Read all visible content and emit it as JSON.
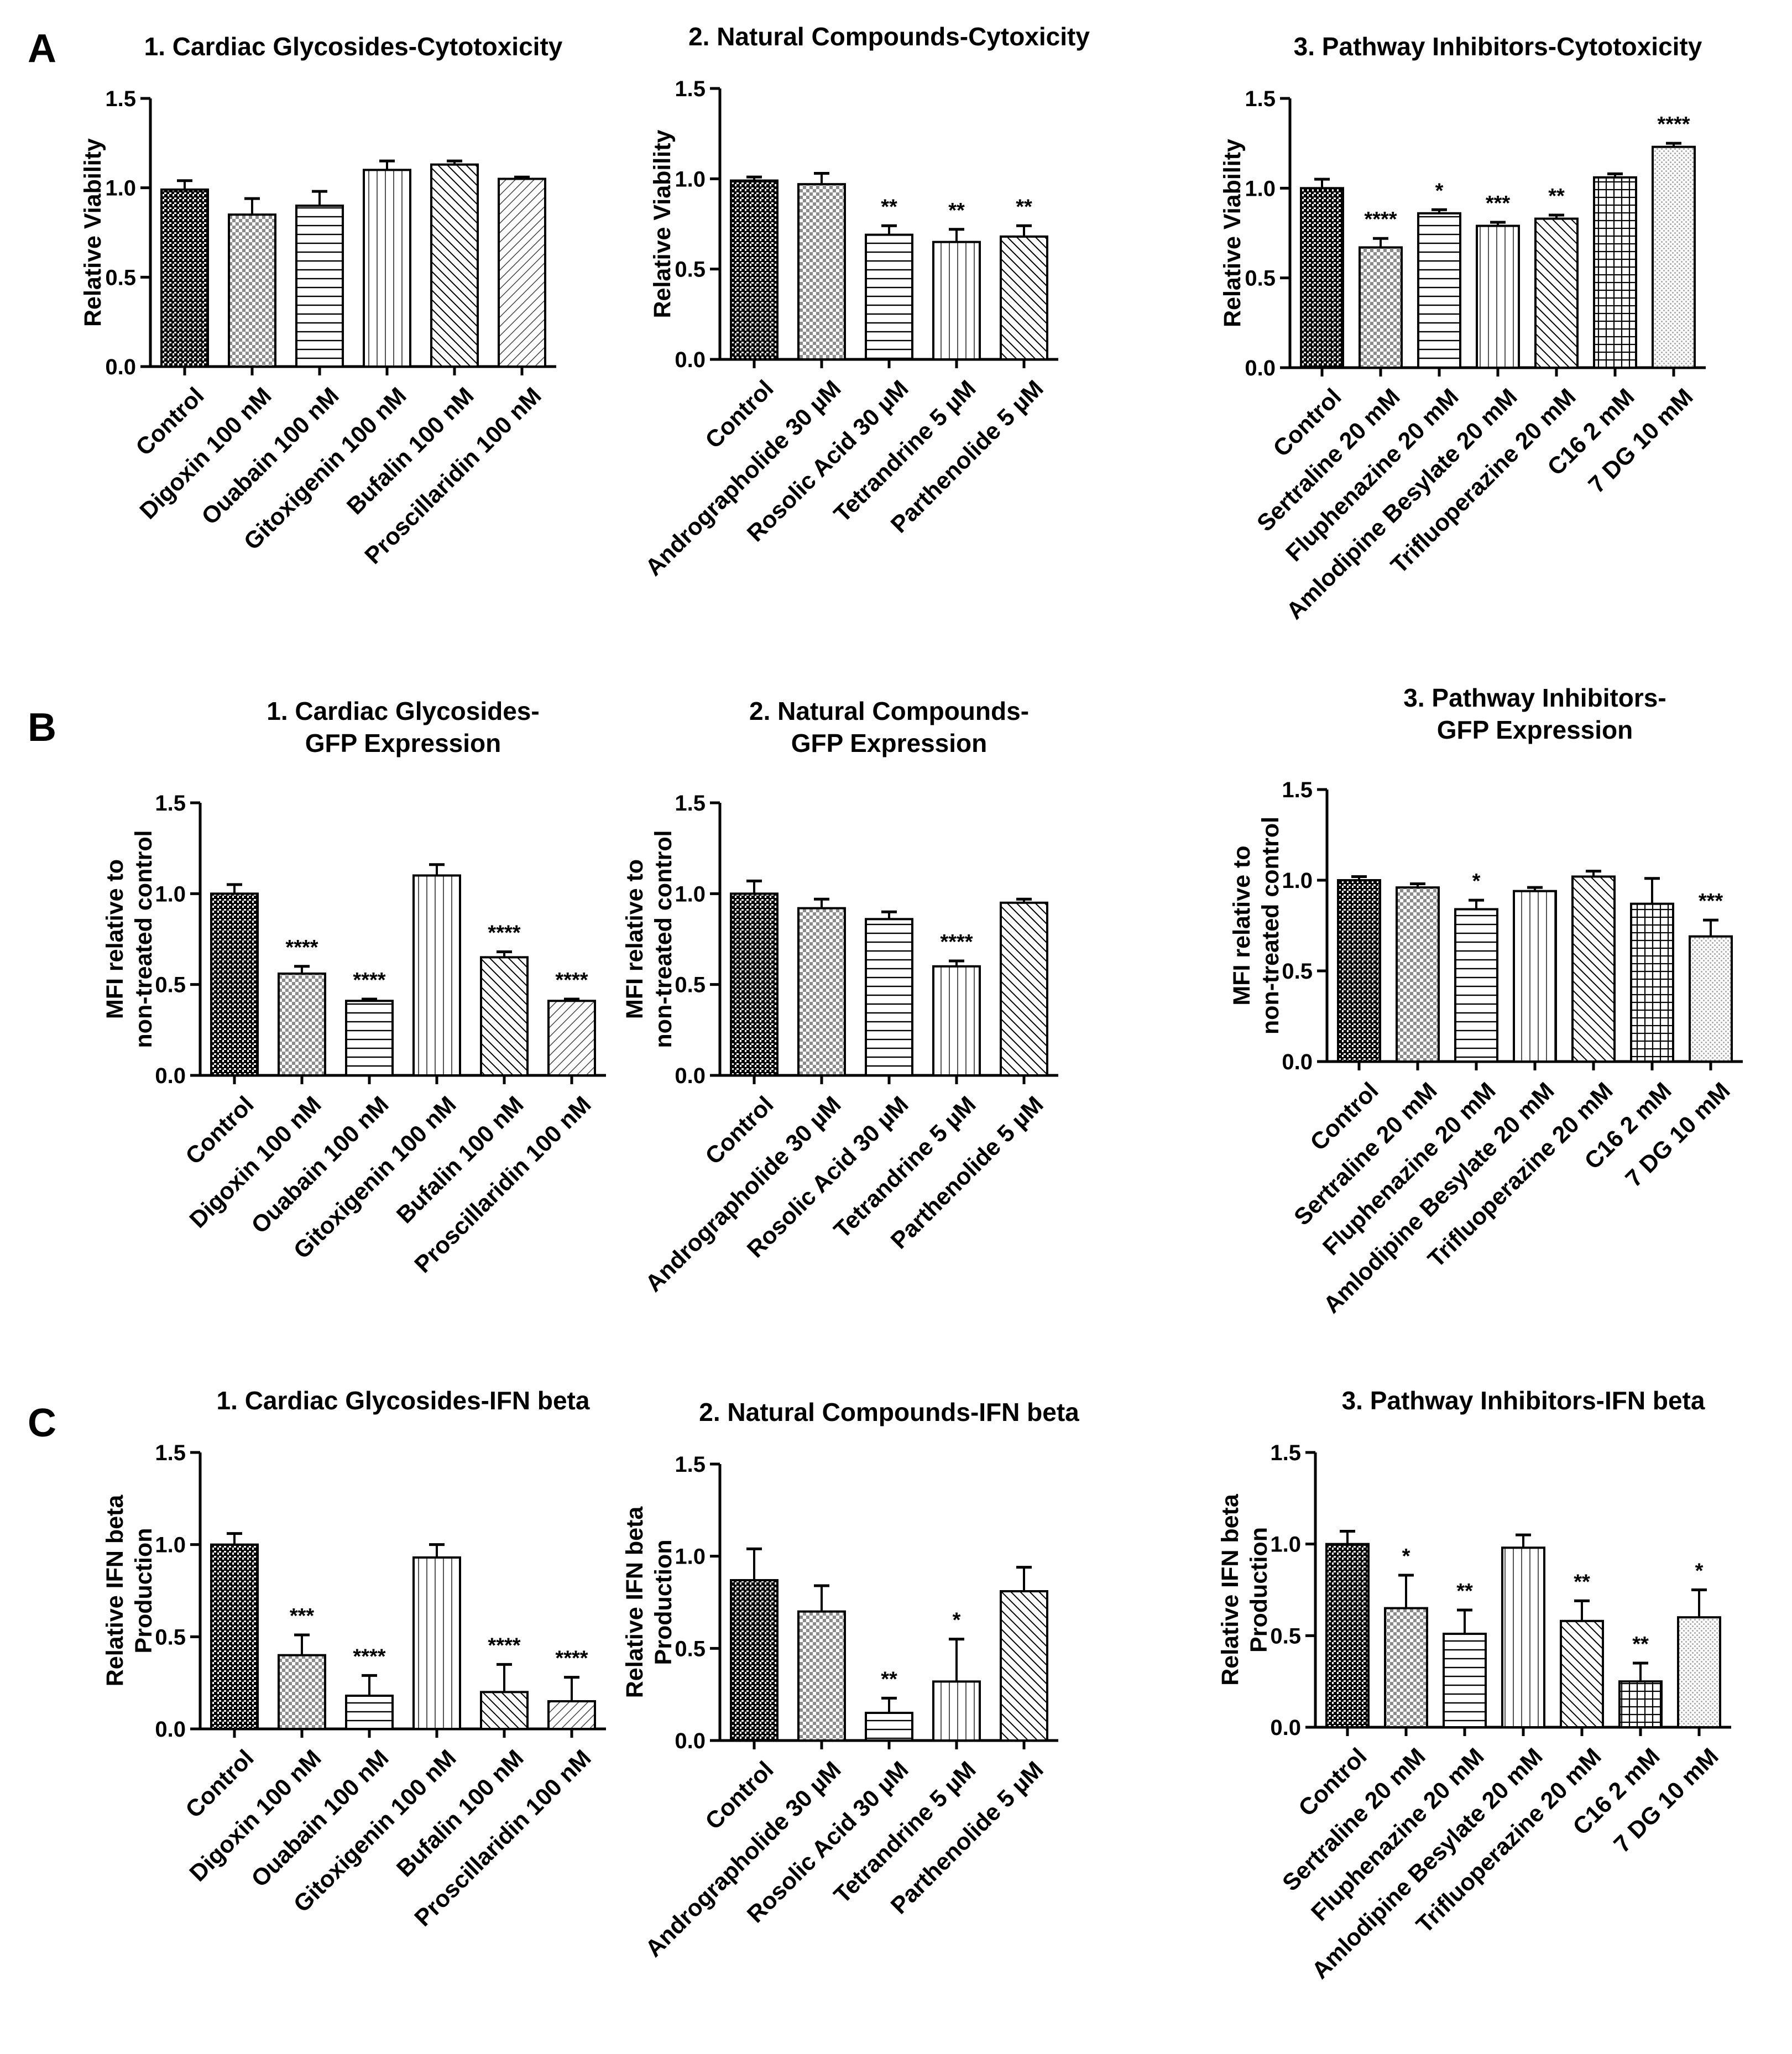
{
  "panel_labels": [
    "A",
    "B",
    "C"
  ],
  "patterns": {
    "Control": "dense-dots",
    "Digoxin 100 nM": "checker",
    "Ouabain 100 nM": "horizontal",
    "Gitoxigenin 100 nM": "vertical",
    "Bufalin 100 nM": "diagonal",
    "Proscillaridin 100 nM": "diagonal-reverse",
    "Andrographolide 30 µM": "checker",
    "Rosolic Acid 30 µM": "horizontal",
    "Tetrandrine 5 µM": "vertical",
    "Parthenolide 5 µM": "diagonal",
    "Sertraline 20 mM": "checker",
    "Fluphenazine 20 mM": "horizontal",
    "Amlodipine Besylate 20 mM": "vertical",
    "Trifluoperazine 20 mM": "diagonal",
    "C16 2 mM": "grid",
    "7 DG 10 mM": "fine-dots"
  },
  "chart_data": [
    {
      "id": "A1",
      "panel": "A",
      "type": "bar",
      "title": [
        "1. Cardiac Glycosides-Cytotoxicity"
      ],
      "ylabel": [
        "Relative Viability"
      ],
      "ylim": [
        0,
        1.5
      ],
      "yticks": [
        "0.0",
        "0.5",
        "1.0",
        "1.5"
      ],
      "categories": [
        "Control",
        "Digoxin 100 nM",
        "Ouabain 100 nM",
        "Gitoxigenin 100 nM",
        "Bufalin 100 nM",
        "Proscillaridin 100 nM"
      ],
      "values": [
        0.99,
        0.85,
        0.9,
        1.1,
        1.13,
        1.05
      ],
      "errors": [
        0.05,
        0.09,
        0.08,
        0.05,
        0.02,
        0.01
      ],
      "significance": [
        "",
        "",
        "",
        "",
        "",
        ""
      ]
    },
    {
      "id": "A2",
      "panel": "A",
      "type": "bar",
      "title": [
        "2. Natural Compounds-Cytoxicity"
      ],
      "ylabel": [
        "Relative Viability"
      ],
      "ylim": [
        0,
        1.5
      ],
      "yticks": [
        "0.0",
        "0.5",
        "1.0",
        "1.5"
      ],
      "categories": [
        "Control",
        "Andrographolide 30 µM",
        "Rosolic Acid 30 µM",
        "Tetrandrine 5 µM",
        "Parthenolide 5 µM"
      ],
      "values": [
        0.99,
        0.97,
        0.69,
        0.65,
        0.68
      ],
      "errors": [
        0.02,
        0.06,
        0.05,
        0.07,
        0.06
      ],
      "significance": [
        "",
        "",
        "**",
        "**",
        "**"
      ]
    },
    {
      "id": "A3",
      "panel": "A",
      "type": "bar",
      "title": [
        "3. Pathway Inhibitors-Cytotoxicity"
      ],
      "ylabel": [
        "Relative Viability"
      ],
      "ylim": [
        0,
        1.5
      ],
      "yticks": [
        "0.0",
        "0.5",
        "1.0",
        "1.5"
      ],
      "categories": [
        "Control",
        "Sertraline 20 mM",
        "Fluphenazine 20 mM",
        "Amlodipine Besylate 20 mM",
        "Trifluoperazine 20 mM",
        "C16 2 mM",
        "7 DG 10 mM"
      ],
      "values": [
        1.0,
        0.67,
        0.86,
        0.79,
        0.83,
        1.06,
        1.23
      ],
      "errors": [
        0.05,
        0.05,
        0.02,
        0.02,
        0.02,
        0.02,
        0.02
      ],
      "significance": [
        "",
        "****",
        "*",
        "***",
        "**",
        "",
        "****"
      ]
    },
    {
      "id": "B1",
      "panel": "B",
      "type": "bar",
      "title": [
        "1. Cardiac Glycosides-",
        "GFP Expression"
      ],
      "ylabel": [
        "MFI relative to",
        "non-treated control"
      ],
      "ylim": [
        0,
        1.5
      ],
      "yticks": [
        "0.0",
        "0.5",
        "1.0",
        "1.5"
      ],
      "categories": [
        "Control",
        "Digoxin 100 nM",
        "Ouabain 100 nM",
        "Gitoxigenin 100 nM",
        "Bufalin 100 nM",
        "Proscillaridin 100 nM"
      ],
      "values": [
        1.0,
        0.56,
        0.41,
        1.1,
        0.65,
        0.41
      ],
      "errors": [
        0.05,
        0.04,
        0.01,
        0.06,
        0.03,
        0.01
      ],
      "significance": [
        "",
        "****",
        "****",
        "",
        "****",
        "****"
      ]
    },
    {
      "id": "B2",
      "panel": "B",
      "type": "bar",
      "title": [
        "2. Natural Compounds-",
        "GFP Expression"
      ],
      "ylabel": [
        "MFI relative to",
        "non-treated control"
      ],
      "ylim": [
        0,
        1.5
      ],
      "yticks": [
        "0.0",
        "0.5",
        "1.0",
        "1.5"
      ],
      "categories": [
        "Control",
        "Andrographolide 30 µM",
        "Rosolic Acid 30 µM",
        "Tetrandrine 5 µM",
        "Parthenolide 5 µM"
      ],
      "values": [
        1.0,
        0.92,
        0.86,
        0.6,
        0.95
      ],
      "errors": [
        0.07,
        0.05,
        0.04,
        0.03,
        0.02
      ],
      "significance": [
        "",
        "",
        "",
        "****",
        ""
      ]
    },
    {
      "id": "B3",
      "panel": "B",
      "type": "bar",
      "title": [
        "3. Pathway Inhibitors-",
        "GFP Expression"
      ],
      "ylabel": [
        "MFI relative to",
        "non-treated control"
      ],
      "ylim": [
        0,
        1.5
      ],
      "yticks": [
        "0.0",
        "0.5",
        "1.0",
        "1.5"
      ],
      "categories": [
        "Control",
        "Sertraline 20 mM",
        "Fluphenazine 20 mM",
        "Amlodipine Besylate 20 mM",
        "Trifluoperazine 20 mM",
        "C16 2 mM",
        "7 DG 10 mM"
      ],
      "values": [
        1.0,
        0.96,
        0.84,
        0.94,
        1.02,
        0.87,
        0.69
      ],
      "errors": [
        0.02,
        0.02,
        0.05,
        0.02,
        0.03,
        0.14,
        0.09
      ],
      "significance": [
        "",
        "",
        "*",
        "",
        "",
        "",
        "***"
      ]
    },
    {
      "id": "C1",
      "panel": "C",
      "type": "bar",
      "title": [
        "1. Cardiac Glycosides-IFN beta"
      ],
      "ylabel": [
        "Relative IFN beta",
        "Production"
      ],
      "ylim": [
        0,
        1.5
      ],
      "yticks": [
        "0.0",
        "0.5",
        "1.0",
        "1.5"
      ],
      "categories": [
        "Control",
        "Digoxin 100 nM",
        "Ouabain 100 nM",
        "Gitoxigenin 100 nM",
        "Bufalin 100 nM",
        "Proscillaridin 100 nM"
      ],
      "values": [
        1.0,
        0.4,
        0.18,
        0.93,
        0.2,
        0.15
      ],
      "errors": [
        0.06,
        0.11,
        0.11,
        0.07,
        0.15,
        0.13
      ],
      "significance": [
        "",
        "***",
        "****",
        "",
        "****",
        "****"
      ]
    },
    {
      "id": "C2",
      "panel": "C",
      "type": "bar",
      "title": [
        "2. Natural Compounds-IFN beta"
      ],
      "ylabel": [
        "Relative IFN beta",
        "Production"
      ],
      "ylim": [
        0,
        1.5
      ],
      "yticks": [
        "0.0",
        "0.5",
        "1.0",
        "1.5"
      ],
      "categories": [
        "Control",
        "Andrographolide 30 µM",
        "Rosolic Acid 30 µM",
        "Tetrandrine 5 µM",
        "Parthenolide 5 µM"
      ],
      "values": [
        0.87,
        0.7,
        0.15,
        0.32,
        0.81
      ],
      "errors": [
        0.17,
        0.14,
        0.08,
        0.23,
        0.13
      ],
      "significance": [
        "",
        "",
        "**",
        "*",
        ""
      ]
    },
    {
      "id": "C3",
      "panel": "C",
      "type": "bar",
      "title": [
        "3. Pathway Inhibitors-IFN beta"
      ],
      "ylabel": [
        "Relative IFN beta",
        "Production"
      ],
      "ylim": [
        0,
        1.5
      ],
      "yticks": [
        "0.0",
        "0.5",
        "1.0",
        "1.5"
      ],
      "categories": [
        "Control",
        "Sertraline 20 mM",
        "Fluphenazine 20 mM",
        "Amlodipine Besylate 20 mM",
        "Trifluoperazine 20 mM",
        "C16 2 mM",
        "7 DG 10 mM"
      ],
      "values": [
        1.0,
        0.65,
        0.51,
        0.98,
        0.58,
        0.25,
        0.6
      ],
      "errors": [
        0.07,
        0.18,
        0.13,
        0.07,
        0.11,
        0.1,
        0.15
      ],
      "significance": [
        "",
        "*",
        "**",
        "",
        "**",
        "**",
        "*"
      ]
    }
  ]
}
